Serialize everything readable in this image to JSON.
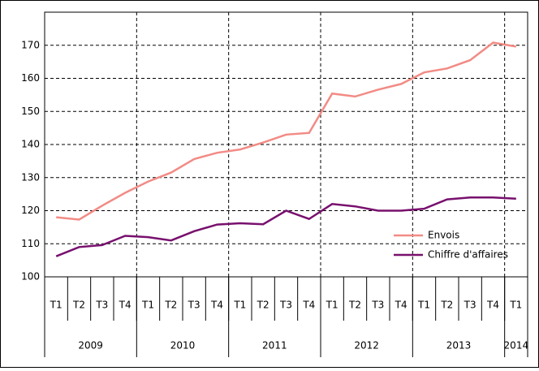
{
  "chart_data": {
    "type": "line",
    "categories": [
      "T1",
      "T2",
      "T3",
      "T4",
      "T1",
      "T2",
      "T3",
      "T4",
      "T1",
      "T2",
      "T3",
      "T4",
      "T1",
      "T2",
      "T3",
      "T4",
      "T1",
      "T2",
      "T3",
      "T4",
      "T1"
    ],
    "year_groups": [
      "2009",
      "2010",
      "2011",
      "2012",
      "2013",
      "2014"
    ],
    "series": [
      {
        "name": "Envois",
        "color": "#f28b85",
        "values": [
          118,
          117.3,
          121.5,
          125.4,
          128.8,
          131.5,
          135.6,
          137.5,
          138.5,
          140.6,
          143,
          143.5,
          155.4,
          154.5,
          156.6,
          158.3,
          161.8,
          163,
          165.5,
          170.8,
          169.6
        ]
      },
      {
        "name": "Chiffre d'affaires",
        "color": "#78106e",
        "values": [
          106.2,
          109,
          109.6,
          112.4,
          112,
          111,
          113.8,
          115.8,
          116.2,
          115.9,
          120,
          117.5,
          122,
          121.3,
          120,
          120,
          120.6,
          123.4,
          124,
          124,
          123.6
        ]
      }
    ],
    "ylim": [
      100,
      180
    ],
    "yticks": [
      100,
      110,
      120,
      130,
      140,
      150,
      160,
      170
    ],
    "grid": true,
    "legend_position": "lower right"
  }
}
